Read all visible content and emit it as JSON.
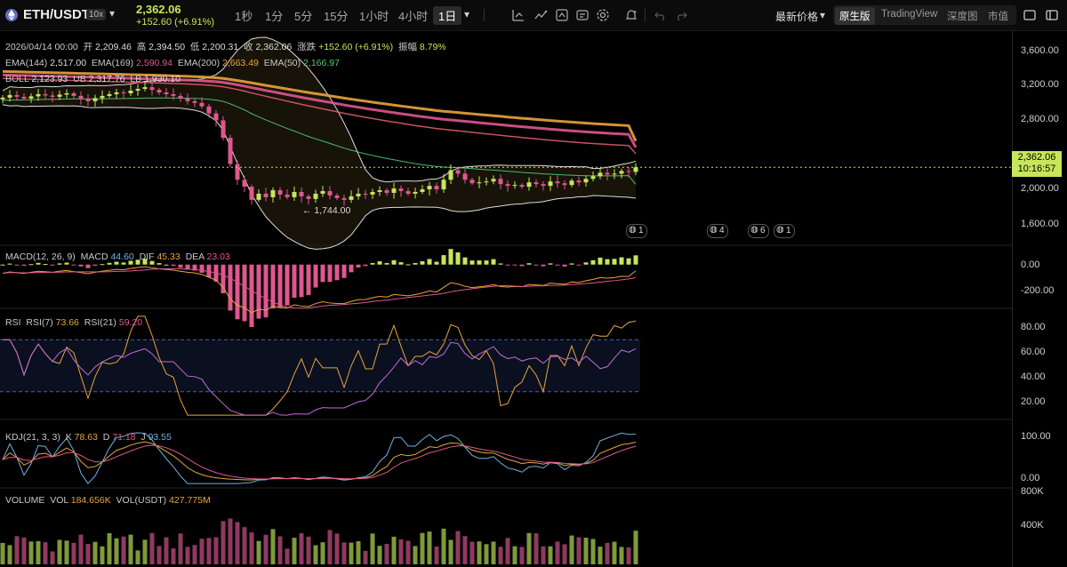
{
  "header": {
    "pair": "ETH/USDT",
    "leverage": "10x",
    "last_price": "2,362.06",
    "change": "+152.60 (+6.91%)",
    "timeframes": [
      "1秒",
      "1分",
      "5分",
      "15分",
      "1小时",
      "4小时",
      "1日"
    ],
    "active_timeframe": "1日",
    "price_type": "最新价格",
    "views": [
      "原生版",
      "TradingView",
      "深度图",
      "市值"
    ],
    "active_view": "原生版"
  },
  "info_bar": {
    "date": "2026/04/14 00:00",
    "open_label": "开",
    "open": "2,209.46",
    "high_label": "高",
    "high": "2,394.50",
    "low_label": "低",
    "low": "2,200.31",
    "close_label": "收",
    "close": "2,362.06",
    "chg_label": "涨跌",
    "chg": "+152.60 (+6.91%)",
    "amp_label": "振幅",
    "amp": "8.79%"
  },
  "ema_legend": {
    "ema144": "EMA(144)",
    "ema144_val": "2,517.00",
    "ema169": "EMA(169)",
    "ema169_val": "2,590.94",
    "ema200": "EMA(200)",
    "ema200_val": "2,663.49",
    "ema50": "EMA(50)",
    "ema50_val": "2,166.97"
  },
  "boll_legend": {
    "name": "BOLL",
    "mid": "2,123.93",
    "ub_label": "UB",
    "ub": "2,317.76",
    "lb_label": "LB",
    "lb": "1,930.10"
  },
  "macd_legend": {
    "name": "MACD(12, 26, 9)",
    "macd_label": "MACD",
    "macd": "44.60",
    "dif_label": "DIF",
    "dif": "45.33",
    "dea_label": "DEA",
    "dea": "23.03"
  },
  "rsi_legend": {
    "name": "RSI",
    "rsi7_label": "RSI(7)",
    "rsi7": "73.66",
    "rsi21_label": "RSI(21)",
    "rsi21": "59.20"
  },
  "kdj_legend": {
    "name": "KDJ(21, 3, 3)",
    "k_label": "K",
    "k": "78.63",
    "d_label": "D",
    "d": "71.18",
    "j_label": "J",
    "j": "93.55"
  },
  "vol_legend": {
    "name": "VOLUME",
    "vol_label": "VOL",
    "vol": "184.656K",
    "volu_label": "VOL(USDT)",
    "volu": "427.775M"
  },
  "axes": {
    "price": [
      "3,600.00",
      "3,200.00",
      "2,800.00",
      "2,000.00",
      "1,600.00"
    ],
    "macd": [
      "0.00",
      "-200.00"
    ],
    "rsi": [
      "80.00",
      "60.00",
      "40.00",
      "20.00"
    ],
    "kdj": [
      "100.00",
      "0.00"
    ],
    "vol": [
      "800K",
      "400K"
    ]
  },
  "current_price_tag": {
    "price": "2,362.06",
    "countdown": "10:16:57"
  },
  "low_annotation": "← 1,744.00",
  "events": [
    "1",
    "4",
    "6",
    "1"
  ],
  "colors": {
    "accent": "#c8e65a",
    "up": "#c8e65a",
    "down": "#e0578f",
    "bg": "#000000"
  },
  "chart_data": {
    "type": "candlestick",
    "price_ylim": [
      1500,
      3800
    ],
    "closes": [
      3160,
      3190,
      3170,
      3150,
      3175,
      3200,
      3185,
      3170,
      3195,
      3210,
      3180,
      3150,
      3120,
      3155,
      3180,
      3200,
      3220,
      3210,
      3240,
      3260,
      3280,
      3250,
      3220,
      3200,
      3180,
      3150,
      3120,
      3100,
      3060,
      2980,
      2900,
      2700,
      2400,
      2220,
      2140,
      1990,
      2060,
      2020,
      2100,
      2050,
      2020,
      2080,
      2030,
      2000,
      2060,
      2090,
      2040,
      2010,
      1990,
      2030,
      2060,
      2050,
      2080,
      2100,
      2070,
      2120,
      2090,
      2060,
      2080,
      2110,
      2150,
      2110,
      2220,
      2330,
      2290,
      2220,
      2180,
      2190,
      2200,
      2230,
      2170,
      2150,
      2160,
      2140,
      2190,
      2170,
      2150,
      2200,
      2180,
      2160,
      2210,
      2190,
      2230,
      2260,
      2300,
      2280,
      2290,
      2320,
      2310,
      2362
    ],
    "ema50": [
      3130,
      3132,
      3134,
      3135,
      3137,
      3139,
      3140,
      3141,
      3143,
      3145,
      3146,
      3146,
      3145,
      3145,
      3146,
      3147,
      3149,
      3150,
      3151,
      3153,
      3155,
      3156,
      3156,
      3156,
      3156,
      3155,
      3153,
      3151,
      3148,
      3141,
      3132,
      3117,
      3089,
      3055,
      3019,
      2977,
      2941,
      2905,
      2873,
      2840,
      2807,
      2777,
      2746,
      2715,
      2688,
      2663,
      2636,
      2609,
      2582,
      2558,
      2537,
      2516,
      2498,
      2481,
      2463,
      2449,
      2434,
      2418,
      2404,
      2392,
      2382,
      2371,
      2365,
      2363,
      2359,
      2354,
      2347,
      2341,
      2335,
      2331,
      2324,
      2317,
      2311,
      2304,
      2299,
      2294,
      2288,
      2284,
      2280,
      2275,
      2272,
      2268,
      2266,
      2265,
      2265,
      2264,
      2264,
      2266,
      2267,
      2167
    ],
    "ema144": [
      3380,
      3378,
      3376,
      3373,
      3371,
      3369,
      3366,
      3364,
      3361,
      3359,
      3357,
      3354,
      3351,
      3349,
      3346,
      3344,
      3342,
      3339,
      3337,
      3335,
      3333,
      3331,
      3328,
      3325,
      3322,
      3319,
      3316,
      3312,
      3308,
      3302,
      3295,
      3285,
      3270,
      3253,
      3235,
      3214,
      3195,
      3176,
      3158,
      3139,
      3120,
      3102,
      3084,
      3066,
      3049,
      3032,
      3015,
      2998,
      2981,
      2965,
      2950,
      2935,
      2921,
      2907,
      2893,
      2880,
      2867,
      2854,
      2841,
      2829,
      2818,
      2806,
      2797,
      2789,
      2781,
      2772,
      2763,
      2754,
      2746,
      2738,
      2729,
      2720,
      2712,
      2703,
      2696,
      2688,
      2680,
      2673,
      2666,
      2659,
      2652,
      2646,
      2640,
      2635,
      2630,
      2625,
      2620,
      2616,
      2612,
      2517
    ],
    "ema169": [
      3420,
      3418,
      3416,
      3414,
      3412,
      3410,
      3408,
      3406,
      3404,
      3402,
      3399,
      3397,
      3395,
      3392,
      3390,
      3388,
      3386,
      3384,
      3381,
      3379,
      3377,
      3375,
      3373,
      3370,
      3367,
      3364,
      3361,
      3358,
      3354,
      3349,
      3343,
      3334,
      3322,
      3307,
      3292,
      3275,
      3259,
      3242,
      3227,
      3211,
      3195,
      3180,
      3164,
      3149,
      3135,
      3120,
      3106,
      3091,
      3077,
      3063,
      3050,
      3037,
      3024,
      3012,
      3000,
      2988,
      2976,
      2965,
      2953,
      2942,
      2932,
      2921,
      2912,
      2905,
      2897,
      2889,
      2881,
      2873,
      2865,
      2858,
      2850,
      2842,
      2835,
      2827,
      2820,
      2813,
      2806,
      2799,
      2793,
      2786,
      2780,
      2774,
      2768,
      2763,
      2758,
      2753,
      2748,
      2744,
      2740,
      2591
    ],
    "ema200": [
      3460,
      3458,
      3456,
      3454,
      3452,
      3450,
      3448,
      3446,
      3444,
      3442,
      3440,
      3438,
      3436,
      3434,
      3432,
      3430,
      3428,
      3426,
      3424,
      3422,
      3420,
      3418,
      3416,
      3413,
      3410,
      3407,
      3404,
      3401,
      3398,
      3393,
      3388,
      3380,
      3369,
      3356,
      3343,
      3329,
      3315,
      3300,
      3287,
      3273,
      3259,
      3246,
      3232,
      3219,
      3206,
      3194,
      3181,
      3168,
      3155,
      3143,
      3131,
      3120,
      3108,
      3097,
      3086,
      3075,
      3064,
      3054,
      3043,
      3033,
      3023,
      3013,
      3004,
      2997,
      2990,
      2982,
      2975,
      2967,
      2960,
      2953,
      2946,
      2938,
      2931,
      2924,
      2918,
      2911,
      2905,
      2898,
      2892,
      2886,
      2880,
      2874,
      2869,
      2863,
      2858,
      2853,
      2848,
      2844,
      2839,
      2663
    ],
    "boll_upper": 2317.76,
    "boll_lower": 1930.1,
    "macd_ylim": [
      -320,
      120
    ],
    "rsi_ylim": [
      10,
      90
    ],
    "kdj_ylim": [
      -10,
      120
    ],
    "vol_ylim": [
      0,
      1000000
    ]
  }
}
